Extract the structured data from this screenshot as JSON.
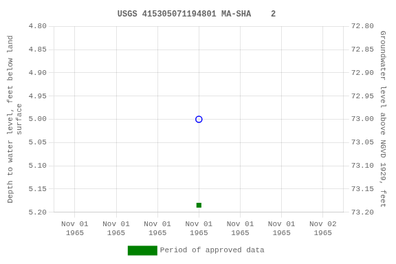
{
  "chart_data": {
    "type": "scatter",
    "title": "USGS 415305071194801 MA-SHA    2",
    "ylabel": "Depth to water level, feet below land\nsurface",
    "y2label": "Groundwater level above NGVD 1929, feet",
    "categories": [
      "Nov 01\n1965",
      "Nov 01\n1965",
      "Nov 01\n1965",
      "Nov 01\n1965",
      "Nov 01\n1965",
      "Nov 01\n1965",
      "Nov 02\n1965"
    ],
    "series": [
      {
        "color": "blue",
        "marker": "open_circle",
        "values": [
          null,
          null,
          null,
          5.0,
          null,
          null,
          null
        ]
      },
      {
        "name": "Period of approved data",
        "color": "#008000",
        "marker": "square",
        "values": [
          null,
          null,
          null,
          5.185,
          null,
          null,
          null
        ]
      }
    ],
    "ylim": [
      5.2,
      4.8
    ],
    "yticks": [
      {
        "value": 4.8,
        "label": "4.80"
      },
      {
        "value": 4.85,
        "label": "4.85"
      },
      {
        "value": 4.9,
        "label": "4.90"
      },
      {
        "value": 4.95,
        "label": "4.95"
      },
      {
        "value": 5.0,
        "label": "5.00"
      },
      {
        "value": 5.05,
        "label": "5.05"
      },
      {
        "value": 5.1,
        "label": "5.10"
      },
      {
        "value": 5.15,
        "label": "5.15"
      },
      {
        "value": 5.2,
        "label": "5.20"
      }
    ],
    "y2lim": [
      73.2,
      72.8
    ],
    "y2ticks": [
      {
        "value": 73.2,
        "label": "73.20"
      },
      {
        "value": 73.15,
        "label": "73.15"
      },
      {
        "value": 73.1,
        "label": "73.10"
      },
      {
        "value": 73.05,
        "label": "73.05"
      },
      {
        "value": 73.0,
        "label": "73.00"
      },
      {
        "value": 72.95,
        "label": "72.95"
      },
      {
        "value": 72.9,
        "label": "72.90"
      },
      {
        "value": 72.85,
        "label": "72.85"
      },
      {
        "value": 72.8,
        "label": "72.80"
      }
    ],
    "grid": true,
    "legend": "bottom"
  }
}
